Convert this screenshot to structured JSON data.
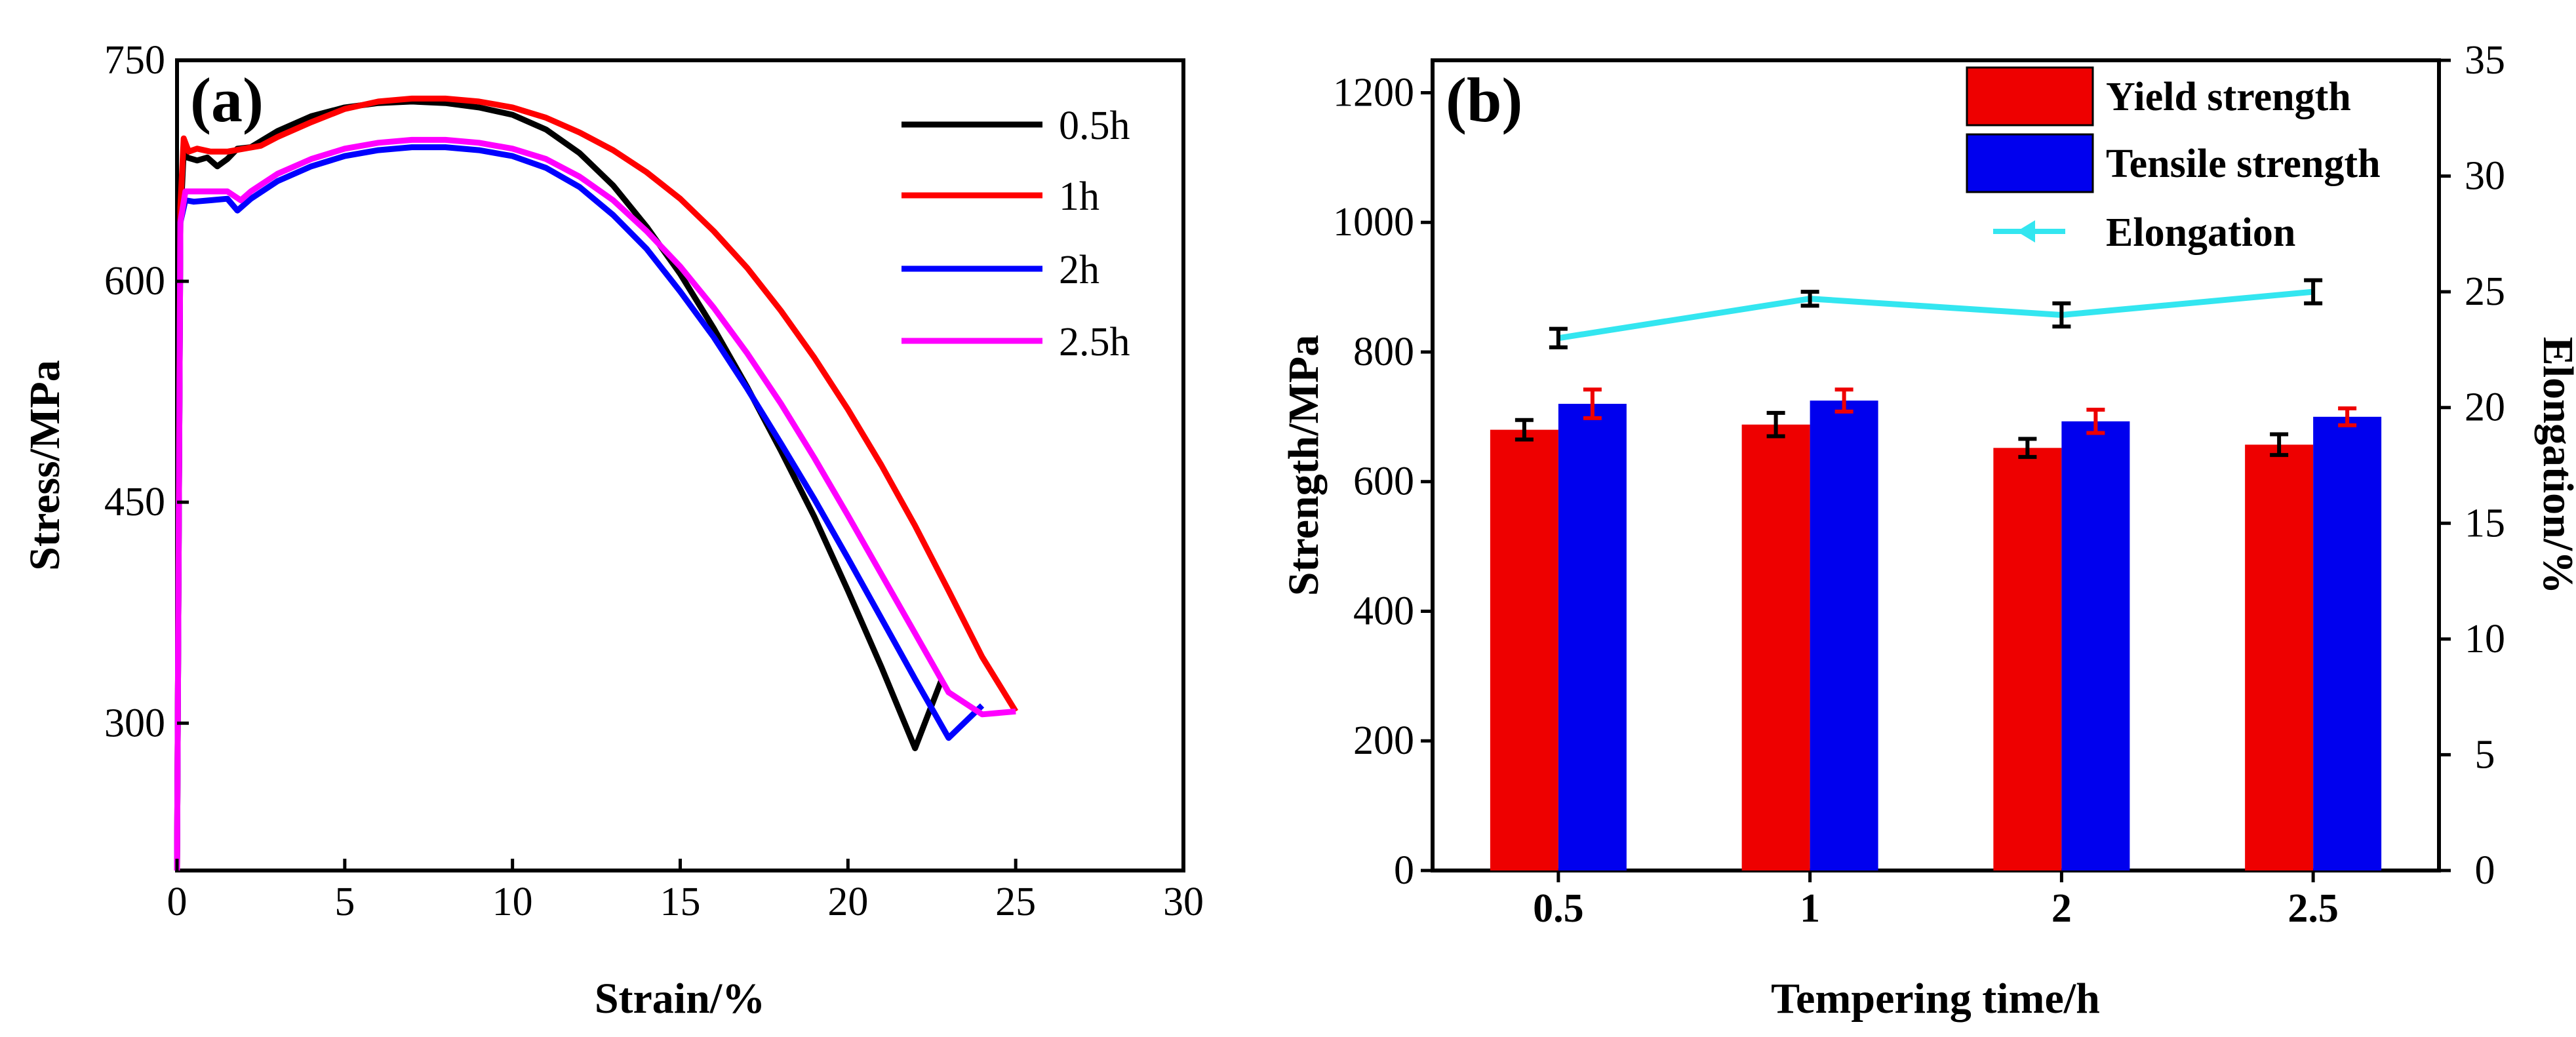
{
  "chart_data": [
    {
      "type": "line",
      "panel_label": "(a)",
      "xlabel": "Strain/%",
      "ylabel": "Stress/MPa",
      "xlim": [
        0,
        30
      ],
      "ylim": [
        200,
        750
      ],
      "xticks": [
        0,
        5,
        10,
        15,
        20,
        25,
        30
      ],
      "yticks": [
        300,
        450,
        600,
        750
      ],
      "legend_position": "top-right",
      "series": [
        {
          "name": "0.5h",
          "color": "#000000",
          "x": [
            0,
            0.1,
            0.2,
            0.3,
            0.6,
            0.9,
            1.2,
            1.5,
            1.8,
            2.2,
            3,
            4,
            5,
            6,
            7,
            8,
            9,
            10,
            11,
            12,
            13,
            14,
            15,
            16,
            17,
            18,
            19,
            20,
            21,
            22,
            22.8
          ],
          "y": [
            200,
            640,
            688,
            684,
            682,
            684,
            678,
            683,
            690,
            691,
            702,
            712,
            718,
            721,
            722,
            721,
            718,
            713,
            703,
            687,
            665,
            637,
            605,
            568,
            528,
            485,
            440,
            390,
            338,
            283,
            330
          ]
        },
        {
          "name": "1h",
          "color": "#ff0000",
          "x": [
            0,
            0.1,
            0.2,
            0.35,
            0.6,
            1,
            1.5,
            2,
            2.5,
            3,
            4,
            5,
            6,
            7,
            8,
            9,
            10,
            11,
            12,
            13,
            14,
            15,
            16,
            17,
            18,
            19,
            20,
            21,
            22,
            23,
            24,
            25
          ],
          "y": [
            200,
            650,
            697,
            688,
            690,
            688,
            688,
            690,
            692,
            698,
            708,
            717,
            722,
            724,
            724,
            722,
            718,
            711,
            701,
            689,
            674,
            656,
            634,
            609,
            580,
            548,
            513,
            475,
            434,
            390,
            345,
            308
          ]
        },
        {
          "name": "2h",
          "color": "#0000ff",
          "x": [
            0,
            0.1,
            0.25,
            0.5,
            1,
            1.5,
            1.8,
            2.2,
            3,
            4,
            5,
            6,
            7,
            8,
            9,
            10,
            11,
            12,
            13,
            14,
            15,
            16,
            17,
            18,
            19,
            20,
            21,
            22,
            23,
            24
          ],
          "y": [
            200,
            640,
            655,
            654,
            655,
            656,
            648,
            656,
            668,
            678,
            685,
            689,
            691,
            691,
            689,
            685,
            677,
            664,
            645,
            622,
            593,
            562,
            527,
            490,
            452,
            412,
            371,
            330,
            290,
            312
          ]
        },
        {
          "name": "2.5h",
          "color": "#ff00ff",
          "x": [
            0,
            0.1,
            0.25,
            0.5,
            1,
            1.5,
            1.9,
            2.2,
            3,
            4,
            5,
            6,
            7,
            8,
            9,
            10,
            11,
            12,
            13,
            14,
            15,
            16,
            17,
            18,
            19,
            20,
            21,
            22,
            23,
            24,
            25
          ],
          "y": [
            200,
            640,
            661,
            661,
            661,
            661,
            655,
            661,
            673,
            683,
            690,
            694,
            696,
            696,
            694,
            690,
            683,
            671,
            655,
            634,
            610,
            582,
            551,
            517,
            480,
            441,
            401,
            361,
            321,
            306,
            308
          ]
        }
      ]
    },
    {
      "type": "bar",
      "panel_label": "(b)",
      "xlabel": "Tempering time/h",
      "ylabel": "Strength/MPa",
      "y2label": "Elongation/%",
      "categories": [
        "0.5",
        "1",
        "2",
        "2.5"
      ],
      "ylim": [
        0,
        1250
      ],
      "yticks": [
        0,
        200,
        400,
        600,
        800,
        1000,
        1200
      ],
      "y2lim": [
        0,
        35
      ],
      "y2ticks": [
        0,
        5,
        10,
        15,
        20,
        25,
        30,
        35
      ],
      "legend_position": "top-right",
      "series": [
        {
          "name": "Yield strength",
          "color": "#ee0000",
          "values": [
            680,
            688,
            652,
            657
          ],
          "errors": [
            15,
            18,
            14,
            16
          ],
          "error_color": "#000000"
        },
        {
          "name": "Tensile strength",
          "color": "#0000ee",
          "values": [
            720,
            725,
            693,
            700
          ],
          "errors": [
            22,
            17,
            18,
            13
          ],
          "error_color": "#ee0000"
        },
        {
          "name": "Elongation",
          "type": "line",
          "axis": "right",
          "color": "#33e6f0",
          "values": [
            23,
            24.7,
            24,
            25
          ],
          "errors": [
            0.4,
            0.3,
            0.5,
            0.5
          ],
          "error_color": "#000000"
        }
      ]
    }
  ]
}
